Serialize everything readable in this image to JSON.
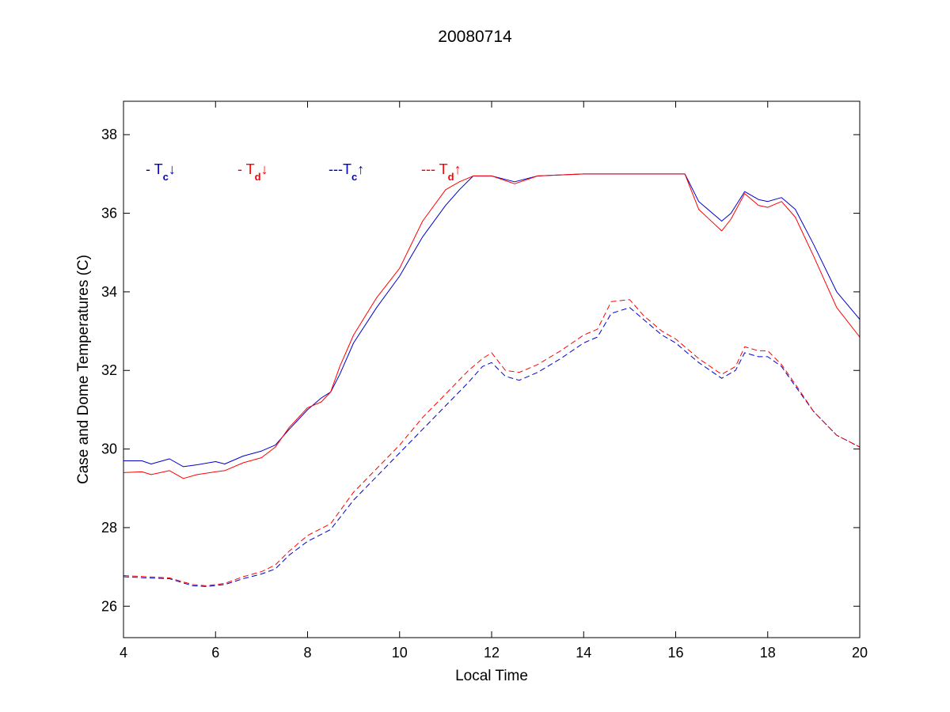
{
  "chart_data": {
    "type": "line",
    "title": "20080714",
    "xlabel": "Local Time",
    "ylabel": "Case and Dome Temperatures (C)",
    "xlim": [
      4,
      20
    ],
    "ylim": [
      25.2,
      38.85
    ],
    "xticks": [
      4,
      6,
      8,
      10,
      12,
      14,
      16,
      18,
      20
    ],
    "yticks": [
      26,
      28,
      30,
      32,
      34,
      36,
      38
    ],
    "grid": false,
    "legend_placement": "top-left, inside axes",
    "series": [
      {
        "name": "- Tc↓",
        "legend": {
          "prefix": "- T",
          "sub": "c",
          "arrow": "↓"
        },
        "color": "#0000cc",
        "style": "solid",
        "x": [
          4.0,
          4.4,
          4.6,
          5.0,
          5.3,
          5.6,
          6.0,
          6.2,
          6.6,
          7.0,
          7.3,
          7.6,
          8.0,
          8.3,
          8.5,
          8.7,
          9.0,
          9.5,
          10.0,
          10.5,
          11.0,
          11.3,
          11.6,
          12.0,
          12.5,
          13.0,
          14.0,
          15.0,
          16.2,
          16.5,
          17.0,
          17.2,
          17.5,
          17.8,
          18.0,
          18.3,
          18.6,
          19.0,
          19.5,
          20.0
        ],
        "y": [
          29.7,
          29.7,
          29.62,
          29.75,
          29.55,
          29.6,
          29.68,
          29.62,
          29.82,
          29.95,
          30.1,
          30.5,
          31.0,
          31.3,
          31.45,
          31.9,
          32.7,
          33.6,
          34.4,
          35.4,
          36.2,
          36.6,
          36.95,
          36.95,
          36.8,
          36.95,
          37.0,
          37.0,
          37.0,
          36.3,
          35.8,
          36.0,
          36.55,
          36.35,
          36.3,
          36.4,
          36.1,
          35.2,
          34.0,
          33.3
        ]
      },
      {
        "name": "- Td↓",
        "legend": {
          "prefix": "- T",
          "sub": "d",
          "arrow": "↓"
        },
        "color": "#ff0000",
        "style": "solid",
        "x": [
          4.0,
          4.4,
          4.6,
          5.0,
          5.3,
          5.6,
          6.0,
          6.2,
          6.6,
          7.0,
          7.3,
          7.6,
          8.0,
          8.3,
          8.5,
          8.7,
          9.0,
          9.5,
          10.0,
          10.5,
          11.0,
          11.3,
          11.6,
          12.0,
          12.5,
          13.0,
          14.0,
          15.0,
          16.2,
          16.5,
          17.0,
          17.2,
          17.5,
          17.8,
          18.0,
          18.3,
          18.6,
          19.0,
          19.5,
          20.0
        ],
        "y": [
          29.4,
          29.42,
          29.35,
          29.45,
          29.25,
          29.35,
          29.42,
          29.45,
          29.65,
          29.78,
          30.05,
          30.55,
          31.05,
          31.2,
          31.45,
          32.1,
          32.9,
          33.85,
          34.6,
          35.8,
          36.6,
          36.8,
          36.95,
          36.95,
          36.75,
          36.95,
          37.0,
          37.0,
          37.0,
          36.1,
          35.55,
          35.85,
          36.5,
          36.2,
          36.15,
          36.3,
          35.9,
          34.9,
          33.6,
          32.85
        ]
      },
      {
        "name": "---Tc↑",
        "legend": {
          "prefix": "---T",
          "sub": "c",
          "arrow": "↑"
        },
        "color": "#0000cc",
        "style": "dashed",
        "x": [
          4.0,
          4.5,
          5.0,
          5.5,
          5.8,
          6.2,
          6.6,
          7.0,
          7.3,
          7.6,
          8.0,
          8.5,
          9.0,
          9.5,
          10.0,
          10.5,
          11.0,
          11.5,
          11.8,
          12.0,
          12.3,
          12.6,
          13.0,
          13.5,
          14.0,
          14.3,
          14.6,
          15.0,
          15.3,
          15.7,
          16.0,
          16.5,
          17.0,
          17.3,
          17.5,
          17.8,
          18.0,
          18.3,
          18.6,
          19.0,
          19.5,
          20.0
        ],
        "y": [
          26.75,
          26.72,
          26.7,
          26.52,
          26.5,
          26.55,
          26.7,
          26.82,
          26.95,
          27.3,
          27.65,
          27.95,
          28.7,
          29.3,
          29.9,
          30.5,
          31.1,
          31.7,
          32.1,
          32.2,
          31.85,
          31.75,
          31.95,
          32.3,
          32.7,
          32.85,
          33.45,
          33.6,
          33.3,
          32.9,
          32.7,
          32.2,
          31.8,
          32.0,
          32.45,
          32.35,
          32.35,
          32.1,
          31.6,
          30.95,
          30.35,
          30.05
        ]
      },
      {
        "name": "--- Td↑",
        "legend": {
          "prefix": "--- T",
          "sub": "d",
          "arrow": "↑"
        },
        "color": "#ff0000",
        "style": "dashed",
        "x": [
          4.0,
          4.5,
          5.0,
          5.5,
          5.8,
          6.2,
          6.6,
          7.0,
          7.3,
          7.6,
          8.0,
          8.5,
          9.0,
          9.5,
          10.0,
          10.5,
          11.0,
          11.5,
          11.8,
          12.0,
          12.3,
          12.6,
          13.0,
          13.5,
          14.0,
          14.3,
          14.6,
          15.0,
          15.3,
          15.7,
          16.0,
          16.5,
          17.0,
          17.3,
          17.5,
          17.8,
          18.0,
          18.3,
          18.6,
          19.0,
          19.5,
          20.0
        ],
        "y": [
          26.78,
          26.75,
          26.72,
          26.55,
          26.52,
          26.58,
          26.75,
          26.88,
          27.05,
          27.4,
          27.8,
          28.1,
          28.9,
          29.5,
          30.1,
          30.8,
          31.4,
          32.0,
          32.3,
          32.45,
          32.0,
          31.95,
          32.15,
          32.5,
          32.9,
          33.05,
          33.75,
          33.8,
          33.4,
          33.0,
          32.8,
          32.3,
          31.9,
          32.1,
          32.6,
          32.5,
          32.5,
          32.15,
          31.65,
          30.95,
          30.35,
          30.05
        ]
      }
    ]
  }
}
